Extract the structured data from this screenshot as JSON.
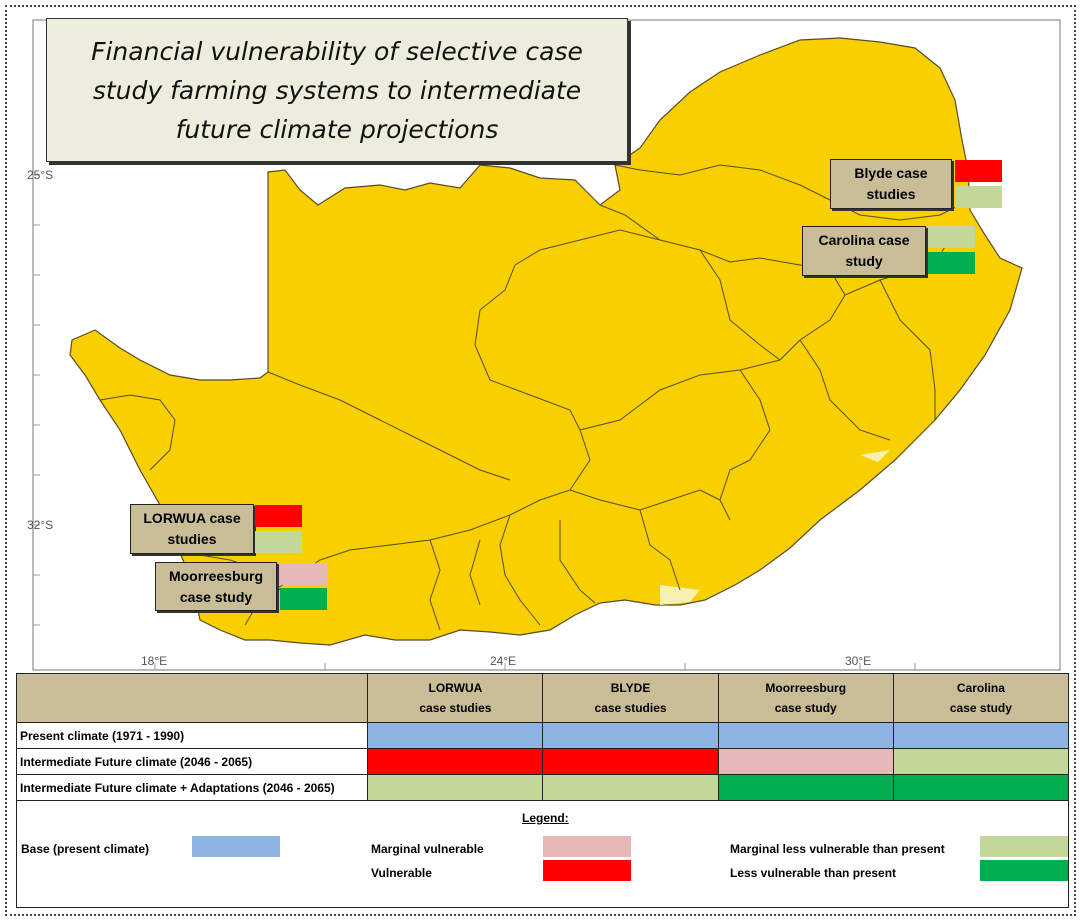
{
  "title": "Financial vulnerability of selective case study farming systems to intermediate future climate projections",
  "colors": {
    "land": "#f8d000",
    "coast_light": "#f7f0b0",
    "border": "#5a4a2a",
    "base": "#8db3e2",
    "marginal_vulnerable": "#e6b9b8",
    "vulnerable": "#ff0000",
    "marginal_less_vulnerable": "#c4d79b",
    "less_vulnerable": "#00b050",
    "header_bg": "#c8bd96"
  },
  "axes": {
    "lat_labels": [
      "25°S",
      "32°S"
    ],
    "lon_labels": [
      "18°E",
      "24°E",
      "30°E"
    ]
  },
  "sites": [
    {
      "name": "Blyde case studies",
      "future": "vulnerable",
      "adapted": "marginal_less_vulnerable"
    },
    {
      "name": "Carolina case study",
      "future": "marginal_less_vulnerable",
      "adapted": "less_vulnerable"
    },
    {
      "name": "LORWUA case studies",
      "future": "vulnerable",
      "adapted": "marginal_less_vulnerable"
    },
    {
      "name": "Moorreesburg case study",
      "future": "marginal_vulnerable",
      "adapted": "less_vulnerable"
    }
  ],
  "table": {
    "columns": [
      {
        "line1": "LORWUA",
        "line2": "case studies"
      },
      {
        "line1": "BLYDE",
        "line2": "case studies"
      },
      {
        "line1": "Moorreesburg",
        "line2": "case study"
      },
      {
        "line1": "Carolina",
        "line2": "case study"
      }
    ],
    "rows": [
      {
        "label": "Present climate (1971 - 1990)",
        "cells": [
          "base",
          "base",
          "base",
          "base"
        ]
      },
      {
        "label": "Intermediate Future climate (2046 - 2065)",
        "cells": [
          "vulnerable",
          "vulnerable",
          "marginal_vulnerable",
          "marginal_less_vulnerable"
        ]
      },
      {
        "label": "Intermediate Future climate + Adaptations (2046 - 2065)",
        "cells": [
          "marginal_less_vulnerable",
          "marginal_less_vulnerable",
          "less_vulnerable",
          "less_vulnerable"
        ]
      }
    ]
  },
  "legend": {
    "heading": "Legend:",
    "items": [
      {
        "label": "Base (present climate)",
        "key": "base"
      },
      {
        "label": "Marginal vulnerable",
        "key": "marginal_vulnerable"
      },
      {
        "label": "Vulnerable",
        "key": "vulnerable"
      },
      {
        "label": "Marginal less vulnerable than present",
        "key": "marginal_less_vulnerable"
      },
      {
        "label": "Less vulnerable than present",
        "key": "less_vulnerable"
      }
    ]
  }
}
